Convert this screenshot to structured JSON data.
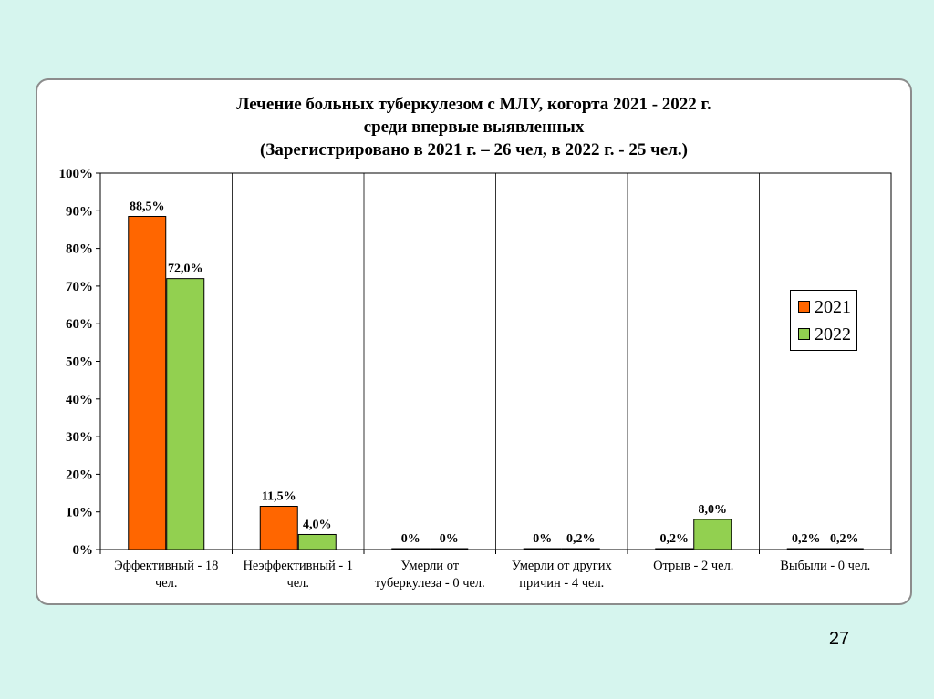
{
  "slide": {
    "title_lines": [
      "Лечение больных туберкулезом с МЛУ, когорта 2021 - 2022 г.",
      "среди впервые выявленных",
      "(Зарегистрировано в 2021 г. – 26 чел, в 2022 г. - 25 чел.)"
    ],
    "page_number": "27"
  },
  "chart_data": {
    "type": "bar",
    "title": "Лечение больных туберкулезом с МЛУ, когорта 2021 - 2022 г. среди впервые выявленных (Зарегистрировано в 2021 г. – 26 чел, в 2022 г. - 25 чел.)",
    "categories": [
      [
        "Эффективный - 18",
        "чел."
      ],
      [
        "Неэффективный - 1",
        "чел."
      ],
      [
        "Умерли от",
        "туберкулеза - 0 чел."
      ],
      [
        "Умерли от других",
        "причин - 4 чел."
      ],
      [
        "Отрыв - 2 чел."
      ],
      [
        "Выбыли - 0 чел."
      ]
    ],
    "series": [
      {
        "name": "2021",
        "color": "#ff6600",
        "values": [
          88.5,
          11.5,
          0,
          0,
          0.2,
          0.2
        ],
        "labels": [
          "88,5%",
          "11,5%",
          "0%",
          "0%",
          "0,2%",
          "0,2%"
        ]
      },
      {
        "name": "2022",
        "color": "#92d050",
        "values": [
          72.0,
          4.0,
          0,
          0.2,
          8.0,
          0.2
        ],
        "labels": [
          "72,0%",
          "4,0%",
          "0%",
          "0,2%",
          "8,0%",
          "0,2%"
        ]
      }
    ],
    "yticks": [
      "0%",
      "10%",
      "20%",
      "30%",
      "40%",
      "50%",
      "60%",
      "70%",
      "80%",
      "90%",
      "100%"
    ],
    "ylim": [
      0,
      100
    ],
    "grid": "vertical category separators",
    "legend_position": "right"
  }
}
